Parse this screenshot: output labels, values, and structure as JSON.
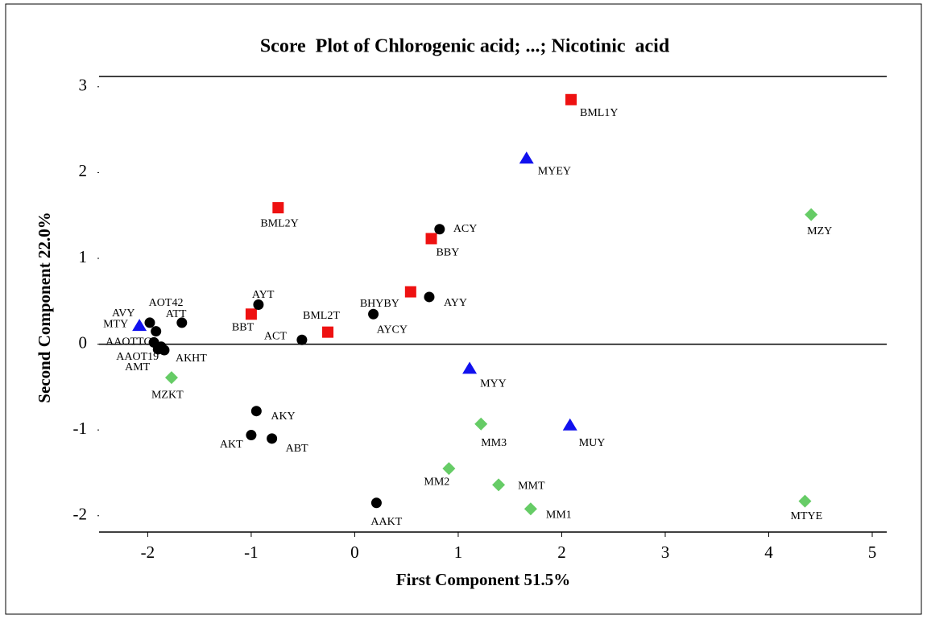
{
  "chart_data": {
    "type": "scatter",
    "title": "Score  Plot of Chlorogenic acid; ...; Nicotinic  acid",
    "x_label": "First Component 51.5%",
    "y_label": "Second Component 22.0%",
    "xlim": [
      -2.47,
      5.14
    ],
    "ylim": [
      -2.19,
      3.12
    ],
    "xticks": [
      -2,
      -1,
      0,
      1,
      2,
      3,
      4,
      5
    ],
    "yticks": [
      -2,
      -1,
      0,
      1,
      2,
      3
    ],
    "series": [
      {
        "color": "#ee1111",
        "marker": "square",
        "labels": [
          "BML1Y",
          "BML2Y",
          "BBY",
          "BHYBY",
          "BBT",
          "BML2T"
        ],
        "x": [
          2.09,
          -0.74,
          0.74,
          0.54,
          -1.0,
          -0.26
        ],
        "values": [
          2.85,
          1.59,
          1.23,
          0.61,
          0.35,
          0.14
        ]
      },
      {
        "color": "#000000",
        "marker": "circle",
        "labels": [
          "ACY",
          "AYY",
          "AYCY",
          "AYT",
          "ACT",
          "AVY",
          "AOT42",
          "ATT",
          "AAOTTG",
          "AAOT19",
          "AKHT",
          "AMT",
          "AKY",
          "AKT",
          "ABT",
          "AAKT"
        ],
        "x": [
          0.82,
          0.72,
          0.18,
          -0.93,
          -0.51,
          -1.98,
          -1.92,
          -1.67,
          -1.94,
          -1.9,
          -1.84,
          -1.87,
          -0.95,
          -1.0,
          -0.8,
          0.21
        ],
        "values": [
          1.34,
          0.55,
          0.35,
          0.46,
          0.05,
          0.25,
          0.15,
          0.25,
          0.02,
          -0.06,
          -0.07,
          -0.03,
          -0.78,
          -1.06,
          -1.1,
          -1.85
        ]
      },
      {
        "color": "#1111ee",
        "marker": "triangle",
        "labels": [
          "MYEY",
          "MTY",
          "MYY",
          "MUY"
        ],
        "x": [
          1.66,
          -2.08,
          1.11,
          2.08
        ],
        "values": [
          2.17,
          0.22,
          -0.28,
          -0.94
        ]
      },
      {
        "color": "#66cc66",
        "marker": "diamond",
        "labels": [
          "MZY",
          "MZKT",
          "MM3",
          "MM2",
          "MMT",
          "MM1",
          "MTYE"
        ],
        "x": [
          4.41,
          -1.77,
          1.22,
          0.91,
          1.39,
          1.7,
          4.35
        ],
        "values": [
          1.51,
          -0.39,
          -0.93,
          -1.45,
          -1.64,
          -1.92,
          -1.83
        ]
      }
    ]
  }
}
